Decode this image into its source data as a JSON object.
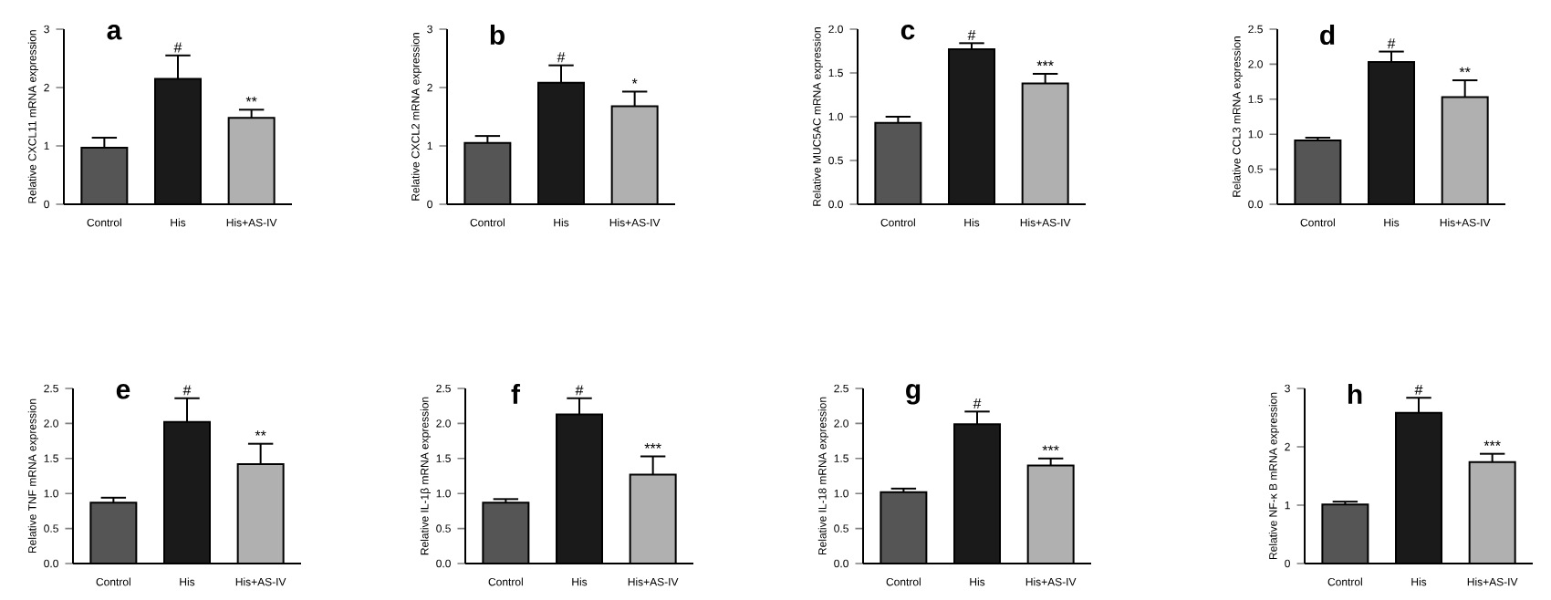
{
  "chart_data": [
    {
      "type": "bar",
      "title": "a",
      "ylabel": "Relative CXCL11 mRNA expression",
      "categories": [
        "Control",
        "His",
        "His+AS-IV"
      ],
      "values": [
        0.97,
        2.15,
        1.48
      ],
      "errors": [
        [
          0.97,
          1.14
        ],
        [
          2.15,
          2.55
        ],
        [
          1.48,
          1.62
        ]
      ],
      "colors": [
        "#555555",
        "#1a1a1a",
        "#b0b0b0"
      ],
      "ylim": [
        0,
        3
      ],
      "yticks": [
        0,
        1,
        2,
        3
      ],
      "annotations": [
        {
          "text": "#",
          "x": "His",
          "y": 2.55
        },
        {
          "text": "**",
          "x": "His+AS-IV",
          "y": 1.62
        }
      ]
    },
    {
      "type": "bar",
      "title": "b",
      "ylabel": "Relative CXCL2 mRNA expression",
      "categories": [
        "Control",
        "His",
        "His+AS-IV"
      ],
      "values": [
        1.05,
        2.08,
        1.68
      ],
      "errors": [
        [
          1.05,
          1.17
        ],
        [
          2.08,
          2.38
        ],
        [
          1.68,
          1.93
        ]
      ],
      "colors": [
        "#555555",
        "#1a1a1a",
        "#b0b0b0"
      ],
      "ylim": [
        0,
        3
      ],
      "yticks": [
        0,
        1,
        2,
        3
      ],
      "annotations": [
        {
          "text": "#",
          "x": "His",
          "y": 2.38
        },
        {
          "text": "*",
          "x": "His+AS-IV",
          "y": 1.93
        }
      ]
    },
    {
      "type": "bar",
      "title": "c",
      "ylabel": "Relative MUC5AC mRNA expression",
      "categories": [
        "Control",
        "His",
        "His+AS-IV"
      ],
      "values": [
        0.93,
        1.77,
        1.38
      ],
      "errors": [
        [
          0.93,
          1.0
        ],
        [
          1.77,
          1.84
        ],
        [
          1.38,
          1.49
        ]
      ],
      "colors": [
        "#555555",
        "#1a1a1a",
        "#b0b0b0"
      ],
      "ylim": [
        0,
        2
      ],
      "yticks": [
        {
          "value": 0,
          "label": "0.0"
        },
        {
          "value": 0.5,
          "label": "0.5"
        },
        {
          "value": 1,
          "label": "1.0"
        },
        {
          "value": 1.5,
          "label": "1.5"
        },
        {
          "value": 2,
          "label": "2.0"
        }
      ],
      "annotations": [
        {
          "text": "#",
          "x": "His",
          "y": 1.84
        },
        {
          "text": "***",
          "x": "His+AS-IV",
          "y": 1.49
        }
      ]
    },
    {
      "type": "bar",
      "title": "d",
      "ylabel": "Relative CCL3 mRNA expression",
      "categories": [
        "Control",
        "His",
        "His+AS-IV"
      ],
      "values": [
        0.91,
        2.03,
        1.53
      ],
      "errors": [
        [
          0.91,
          0.95
        ],
        [
          2.03,
          2.18
        ],
        [
          1.53,
          1.77
        ]
      ],
      "colors": [
        "#555555",
        "#1a1a1a",
        "#b0b0b0"
      ],
      "ylim": [
        0,
        2.5
      ],
      "yticks": [
        {
          "value": 0,
          "label": "0.0"
        },
        {
          "value": 0.5,
          "label": "0.5"
        },
        {
          "value": 1,
          "label": "1.0"
        },
        {
          "value": 1.5,
          "label": "1.5"
        },
        {
          "value": 2,
          "label": "2.0"
        },
        {
          "value": 2.5,
          "label": "2.5"
        }
      ],
      "annotations": [
        {
          "text": "#",
          "x": "His",
          "y": 2.18
        },
        {
          "text": "**",
          "x": "His+AS-IV",
          "y": 1.77
        }
      ]
    },
    {
      "type": "bar",
      "title": "e",
      "ylabel": "Relative TNF mRNA expression",
      "categories": [
        "Control",
        "His",
        "His+AS-IV"
      ],
      "values": [
        0.87,
        2.02,
        1.42
      ],
      "errors": [
        [
          0.87,
          0.94
        ],
        [
          2.02,
          2.36
        ],
        [
          1.42,
          1.71
        ]
      ],
      "colors": [
        "#555555",
        "#1a1a1a",
        "#b0b0b0"
      ],
      "ylim": [
        0,
        2.5
      ],
      "yticks": [
        {
          "value": 0,
          "label": "0.0"
        },
        {
          "value": 0.5,
          "label": "0.5"
        },
        {
          "value": 1,
          "label": "1.0"
        },
        {
          "value": 1.5,
          "label": "1.5"
        },
        {
          "value": 2,
          "label": "2.0"
        },
        {
          "value": 2.5,
          "label": "2.5"
        }
      ],
      "annotations": [
        {
          "text": "#",
          "x": "His",
          "y": 2.36
        },
        {
          "text": "**",
          "x": "His+AS-IV",
          "y": 1.71
        }
      ]
    },
    {
      "type": "bar",
      "title": "f",
      "ylabel": "Relative IL-1β mRNA expression",
      "categories": [
        "Control",
        "His",
        "His+AS-IV"
      ],
      "values": [
        0.87,
        2.13,
        1.27
      ],
      "errors": [
        [
          0.87,
          0.92
        ],
        [
          2.13,
          2.36
        ],
        [
          1.27,
          1.53
        ]
      ],
      "colors": [
        "#555555",
        "#1a1a1a",
        "#b0b0b0"
      ],
      "ylim": [
        0,
        2.5
      ],
      "yticks": [
        {
          "value": 0,
          "label": "0.0"
        },
        {
          "value": 0.5,
          "label": "0.5"
        },
        {
          "value": 1,
          "label": "1.0"
        },
        {
          "value": 1.5,
          "label": "1.5"
        },
        {
          "value": 2,
          "label": "2.0"
        },
        {
          "value": 2.5,
          "label": "2.5"
        }
      ],
      "annotations": [
        {
          "text": "#",
          "x": "His",
          "y": 2.36
        },
        {
          "text": "***",
          "x": "His+AS-IV",
          "y": 1.53
        }
      ]
    },
    {
      "type": "bar",
      "title": "g",
      "ylabel": "Relative IL-18 mRNA expression",
      "categories": [
        "Control",
        "His",
        "His+AS-IV"
      ],
      "values": [
        1.02,
        1.99,
        1.4
      ],
      "errors": [
        [
          1.02,
          1.07
        ],
        [
          1.99,
          2.17
        ],
        [
          1.4,
          1.5
        ]
      ],
      "colors": [
        "#555555",
        "#1a1a1a",
        "#b0b0b0"
      ],
      "ylim": [
        0,
        2.5
      ],
      "yticks": [
        {
          "value": 0,
          "label": "0.0"
        },
        {
          "value": 0.5,
          "label": "0.5"
        },
        {
          "value": 1,
          "label": "1.0"
        },
        {
          "value": 1.5,
          "label": "1.5"
        },
        {
          "value": 2,
          "label": "2.0"
        },
        {
          "value": 2.5,
          "label": "2.5"
        }
      ],
      "annotations": [
        {
          "text": "#",
          "x": "His",
          "y": 2.17
        },
        {
          "text": "***",
          "x": "His+AS-IV",
          "y": 1.5
        }
      ]
    },
    {
      "type": "bar",
      "title": "h",
      "ylabel": "Relative NF-κ B mRNA expression",
      "categories": [
        "Control",
        "His",
        "His+AS-IV"
      ],
      "values": [
        1.01,
        2.58,
        1.74
      ],
      "errors": [
        [
          1.01,
          1.06
        ],
        [
          2.58,
          2.84
        ],
        [
          1.74,
          1.88
        ]
      ],
      "colors": [
        "#555555",
        "#1a1a1a",
        "#b0b0b0"
      ],
      "ylim": [
        0,
        3
      ],
      "yticks": [
        0,
        1,
        2,
        3
      ],
      "annotations": [
        {
          "text": "#",
          "x": "His",
          "y": 2.84
        },
        {
          "text": "***",
          "x": "His+AS-IV",
          "y": 1.88
        }
      ]
    }
  ]
}
